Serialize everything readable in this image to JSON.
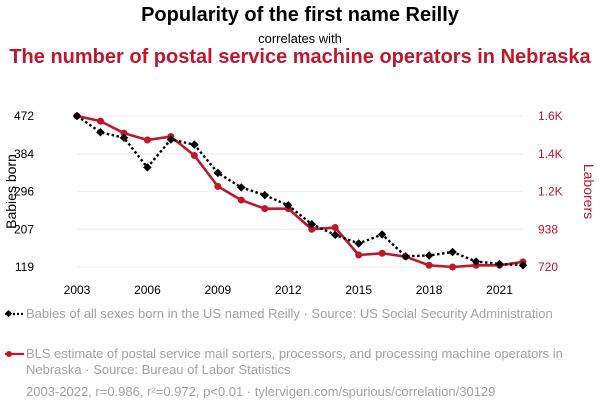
{
  "title": "Popularity of the first name Reilly",
  "subtitle": "correlates with",
  "title2": "The number of postal service machine operators in Nebraska",
  "chart_data": {
    "type": "line",
    "x": [
      2003,
      2004,
      2005,
      2006,
      2007,
      2008,
      2009,
      2010,
      2011,
      2012,
      2013,
      2014,
      2015,
      2016,
      2017,
      2018,
      2019,
      2020,
      2021,
      2022
    ],
    "x_ticks": [
      "2003",
      "2006",
      "2009",
      "2012",
      "2015",
      "2018",
      "2021"
    ],
    "xlim": [
      2003,
      2022
    ],
    "series": [
      {
        "name": "Babies of all sexes born in the US named Reilly · Source: US Social Security Administration",
        "axis": "left",
        "color": "#000000",
        "style": "dotted",
        "values": [
          472,
          434,
          421,
          352,
          417,
          405,
          339,
          305,
          287,
          263,
          219,
          194,
          174,
          195,
          144,
          146,
          154,
          132,
          126,
          123
        ]
      },
      {
        "name": "BLS estimate of postal service mail sorters, processors, and processing machine operators in Nebraska · Source: Bureau of Labor Statistics",
        "axis": "right",
        "color": "#c0182a",
        "style": "solid",
        "values": [
          1600,
          1570,
          1500,
          1460,
          1480,
          1370,
          1190,
          1110,
          1060,
          1060,
          940,
          950,
          790,
          800,
          780,
          730,
          720,
          730,
          730,
          750
        ]
      }
    ],
    "ylabel_left": "Babies born",
    "ylim_left": [
      119,
      472
    ],
    "yticks_left": [
      "119",
      "207",
      "296",
      "384",
      "472"
    ],
    "ylabel_right": "Laborers",
    "ylim_right": [
      720,
      1600
    ],
    "yticks_right": [
      "720",
      "938",
      "1.2K",
      "1.4K",
      "1.6K"
    ],
    "grid": true,
    "legend_position": "bottom"
  },
  "footer": "2003-2022, r=0.986, r²=0.972, p<0.01 · tylervigen.com/spurious/correlation/30129"
}
